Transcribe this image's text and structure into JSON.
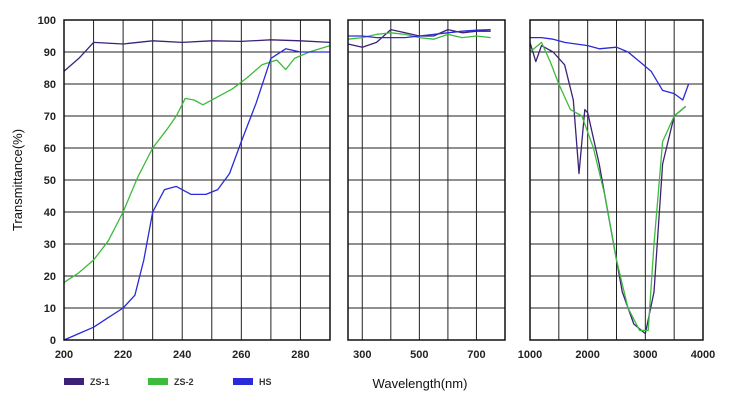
{
  "chart_data": {
    "type": "line",
    "title": "",
    "ylabel": "Transmittance(%)",
    "xlabel": "Wavelength(nm)",
    "ylim": [
      0,
      100
    ],
    "yticks": [
      "0",
      "10",
      "20",
      "30",
      "40",
      "50",
      "60",
      "70",
      "80",
      "90",
      "100"
    ],
    "grid": true,
    "legend": "bottom-left",
    "panels": [
      {
        "xlim": [
          200,
          290
        ],
        "xticks": [
          {
            "v": 200,
            "label": "200"
          },
          {
            "v": 220,
            "label": "220"
          },
          {
            "v": 240,
            "label": "240"
          },
          {
            "v": 260,
            "label": "260"
          },
          {
            "v": 280,
            "label": "280"
          }
        ],
        "grid_x": [
          200,
          210,
          220,
          230,
          240,
          250,
          260,
          270,
          280,
          290
        ]
      },
      {
        "xlim": [
          250,
          800
        ],
        "xticks": [
          {
            "v": 300,
            "label": "300"
          },
          {
            "v": 500,
            "label": "500"
          },
          {
            "v": 700,
            "label": "700"
          }
        ],
        "grid_x": [
          300,
          400,
          500,
          600,
          700
        ]
      },
      {
        "xlim": [
          1000,
          4000
        ],
        "xticks": [
          {
            "v": 1000,
            "label": "1000"
          },
          {
            "v": 2000,
            "label": "2000"
          },
          {
            "v": 3000,
            "label": "3000"
          },
          {
            "v": 4000,
            "label": "4000"
          }
        ],
        "grid_x": [
          1500,
          2000,
          2500,
          3000,
          3500
        ]
      }
    ],
    "series": [
      {
        "name": "ZS-1",
        "color": "#3b2277",
        "panels": [
          [
            [
              200,
              84
            ],
            [
              205,
              88
            ],
            [
              210,
              93
            ],
            [
              220,
              92.5
            ],
            [
              230,
              93.5
            ],
            [
              240,
              93
            ],
            [
              250,
              93.5
            ],
            [
              260,
              93.3
            ],
            [
              270,
              93.8
            ],
            [
              280,
              93.5
            ],
            [
              290,
              93
            ]
          ],
          [
            [
              250,
              92.5
            ],
            [
              300,
              91.5
            ],
            [
              350,
              93
            ],
            [
              400,
              97
            ],
            [
              450,
              96
            ],
            [
              500,
              95
            ],
            [
              550,
              95
            ],
            [
              600,
              97
            ],
            [
              650,
              96
            ],
            [
              700,
              96.5
            ],
            [
              750,
              96.5
            ]
          ],
          [
            [
              1000,
              93
            ],
            [
              1100,
              87
            ],
            [
              1200,
              92
            ],
            [
              1300,
              91
            ],
            [
              1400,
              90
            ],
            [
              1600,
              86
            ],
            [
              1750,
              75
            ],
            [
              1850,
              52
            ],
            [
              1950,
              72
            ],
            [
              2000,
              71
            ],
            [
              2200,
              55
            ],
            [
              2400,
              35
            ],
            [
              2600,
              15
            ],
            [
              2800,
              5
            ],
            [
              3000,
              2
            ],
            [
              3150,
              15
            ],
            [
              3300,
              55
            ],
            [
              3500,
              70
            ],
            [
              3700,
              73
            ]
          ]
        ]
      },
      {
        "name": "ZS-2",
        "color": "#3dbb3d",
        "panels": [
          [
            [
              200,
              18
            ],
            [
              205,
              21
            ],
            [
              210,
              25
            ],
            [
              215,
              31
            ],
            [
              220,
              40
            ],
            [
              225,
              51
            ],
            [
              230,
              60
            ],
            [
              235,
              66
            ],
            [
              238,
              70
            ],
            [
              241,
              75.5
            ],
            [
              244,
              75
            ],
            [
              247,
              73.5
            ],
            [
              252,
              76
            ],
            [
              257,
              78.5
            ],
            [
              262,
              82
            ],
            [
              267,
              86
            ],
            [
              272,
              87.5
            ],
            [
              275,
              84.5
            ],
            [
              278,
              88
            ],
            [
              283,
              90
            ],
            [
              290,
              92
            ]
          ],
          [
            [
              250,
              94
            ],
            [
              300,
              94.5
            ],
            [
              350,
              95.5
            ],
            [
              400,
              96
            ],
            [
              450,
              95.5
            ],
            [
              500,
              94.5
            ],
            [
              550,
              94
            ],
            [
              600,
              95.5
            ],
            [
              650,
              94.5
            ],
            [
              700,
              95
            ],
            [
              750,
              94.5
            ]
          ],
          [
            [
              1000,
              90
            ],
            [
              1200,
              93
            ],
            [
              1350,
              87
            ],
            [
              1500,
              80
            ],
            [
              1700,
              72
            ],
            [
              1900,
              70
            ],
            [
              2100,
              60
            ],
            [
              2300,
              45
            ],
            [
              2500,
              25
            ],
            [
              2700,
              10
            ],
            [
              2900,
              3
            ],
            [
              3050,
              3
            ],
            [
              3150,
              30
            ],
            [
              3300,
              62
            ],
            [
              3500,
              70
            ],
            [
              3700,
              73
            ]
          ]
        ]
      },
      {
        "name": "HS",
        "color": "#2a2ad9",
        "panels": [
          [
            [
              200,
              0
            ],
            [
              205,
              2
            ],
            [
              210,
              4
            ],
            [
              215,
              7
            ],
            [
              220,
              10
            ],
            [
              224,
              14
            ],
            [
              227,
              25
            ],
            [
              230,
              40
            ],
            [
              234,
              47
            ],
            [
              238,
              48
            ],
            [
              243,
              45.5
            ],
            [
              248,
              45.5
            ],
            [
              252,
              47
            ],
            [
              256,
              52
            ],
            [
              260,
              62
            ],
            [
              265,
              74
            ],
            [
              270,
              88
            ],
            [
              275,
              91
            ],
            [
              280,
              90
            ],
            [
              290,
              90
            ]
          ],
          [
            [
              250,
              95
            ],
            [
              300,
              95
            ],
            [
              350,
              94.5
            ],
            [
              400,
              94.5
            ],
            [
              450,
              94.5
            ],
            [
              500,
              95
            ],
            [
              550,
              95.5
            ],
            [
              600,
              96
            ],
            [
              650,
              96.5
            ],
            [
              700,
              96.8
            ],
            [
              750,
              97
            ]
          ],
          [
            [
              1000,
              94.5
            ],
            [
              1200,
              94.5
            ],
            [
              1400,
              94
            ],
            [
              1600,
              93
            ],
            [
              1800,
              92.5
            ],
            [
              2000,
              92
            ],
            [
              2200,
              91
            ],
            [
              2500,
              91.5
            ],
            [
              2700,
              90
            ],
            [
              2900,
              87
            ],
            [
              3100,
              84
            ],
            [
              3300,
              78
            ],
            [
              3500,
              77
            ],
            [
              3650,
              75
            ],
            [
              3750,
              80
            ]
          ]
        ]
      }
    ]
  }
}
